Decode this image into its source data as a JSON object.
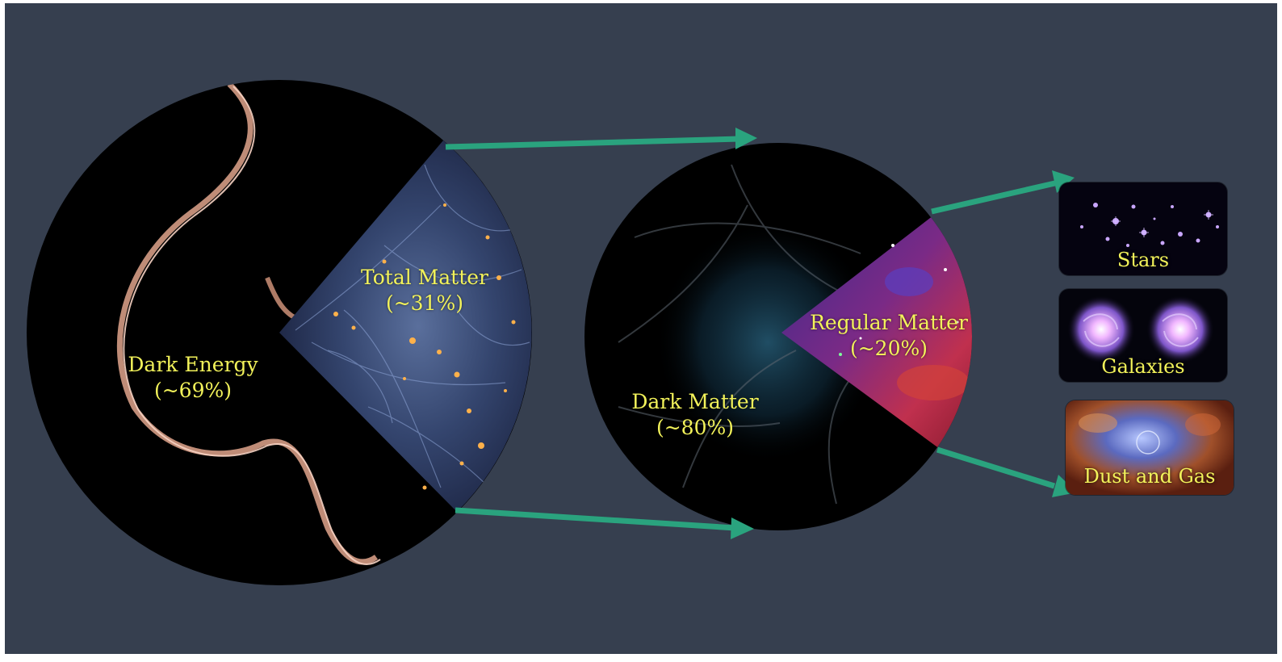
{
  "diagram": {
    "total": {
      "dark_energy": {
        "label": "Dark Energy",
        "value": "(~69%)"
      },
      "total_matter": {
        "label": "Total Matter",
        "value": "(~31%)"
      }
    },
    "matter": {
      "dark_matter": {
        "label": "Dark Matter",
        "value": "(~80%)"
      },
      "regular_matter": {
        "label": "Regular Matter",
        "value": "(~20%)"
      }
    },
    "regular_components": [
      {
        "label": "Stars"
      },
      {
        "label": "Galaxies"
      },
      {
        "label": "Dust and Gas"
      }
    ]
  },
  "colors": {
    "background": "#363f4f",
    "arrow": "#2aa37e",
    "label_text": "#f2f25a",
    "circle_fill": "#000000"
  }
}
